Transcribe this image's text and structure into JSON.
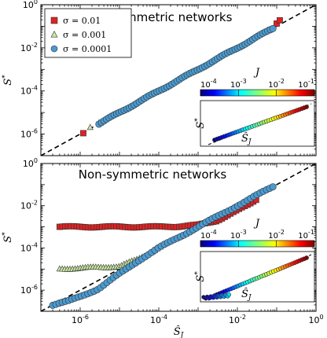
{
  "chart_data": [
    {
      "type": "scatter",
      "title": "Symmetric networks",
      "xscale": "log",
      "yscale": "log",
      "xlim": [
        1e-07,
        1
      ],
      "ylim": [
        1e-07,
        1
      ],
      "xlabel": "",
      "ylabel": "S*",
      "ytick_labels": [
        "10^{-6}",
        "10^{-4}",
        "10^{-2}",
        "10^{0}"
      ],
      "xtick_labels": [],
      "reference_line": "y = x (dashed)",
      "legend": {
        "placement": "top-left",
        "entries": [
          {
            "label": "σ = 0.01",
            "marker": "square",
            "color": "#dd2222"
          },
          {
            "label": "σ = 0.001",
            "marker": "triangle",
            "color": "#c8e6a0"
          },
          {
            "label": "σ = 0.0001",
            "marker": "circle",
            "color": "#4a9ad0"
          }
        ]
      },
      "series": [
        {
          "name": "σ = 0.01",
          "x": [
            1.2e-06,
            0.1,
            0.12
          ],
          "y": [
            1.1e-06,
            0.13,
            0.18
          ]
        },
        {
          "name": "σ = 0.001",
          "x": [
            1.8e-06,
            3e-06,
            0.06
          ],
          "y": [
            2e-06,
            3.3e-06,
            0.07
          ]
        },
        {
          "name": "σ = 0.0001",
          "x": [
            3e-06,
            6e-06,
            1e-05,
            2e-05,
            4e-05,
            8e-05,
            0.00015,
            0.0003,
            0.0006,
            0.001,
            0.002,
            0.004,
            0.008,
            0.015,
            0.03,
            0.05,
            0.08
          ],
          "y": [
            3e-06,
            6e-06,
            1e-05,
            2e-05,
            4e-05,
            8e-05,
            0.00015,
            0.0003,
            0.0006,
            0.001,
            0.002,
            0.004,
            0.008,
            0.015,
            0.03,
            0.05,
            0.08
          ]
        }
      ],
      "inset": {
        "placement": "bottom-right",
        "xlabel": "Ŝ_J",
        "ylabel": "S*",
        "colorbar": {
          "label": "J",
          "scale": "log",
          "range": [
            0.0001,
            0.1
          ],
          "tick_labels": [
            "10^{-4}",
            "10^{-3}",
            "10^{-2}",
            "10^{-1}"
          ],
          "colormap": "jet"
        }
      }
    },
    {
      "type": "scatter",
      "title": "Non-symmetric networks",
      "xscale": "log",
      "yscale": "log",
      "xlim": [
        1e-07,
        1
      ],
      "ylim": [
        1e-07,
        1
      ],
      "xlabel": "Ŝ_J",
      "ylabel": "S*",
      "ytick_labels": [
        "10^{-6}",
        "10^{-4}",
        "10^{-2}",
        "10^{0}"
      ],
      "xtick_labels": [
        "10^{-6}",
        "10^{-4}",
        "10^{-2}",
        "10^{0}"
      ],
      "reference_line": "y = x (dashed)",
      "series": [
        {
          "name": "σ = 0.01",
          "x": [
            3e-07,
            1e-06,
            3e-06,
            1e-05,
            3e-05,
            0.0001,
            0.0003,
            0.001,
            0.003,
            0.01,
            0.02,
            0.03
          ],
          "y": [
            0.001,
            0.001,
            0.001,
            0.001,
            0.001,
            0.001,
            0.00105,
            0.0012,
            0.002,
            0.006,
            0.012,
            0.02
          ]
        },
        {
          "name": "σ = 0.001",
          "x": [
            3e-07,
            1e-06,
            3e-06,
            1e-05,
            3e-05,
            0.0001,
            0.0003,
            0.001,
            0.003,
            0.01
          ],
          "y": [
            1e-05,
            1.1e-05,
            1.2e-05,
            1.3e-05,
            3e-05,
            0.0001,
            0.0003,
            0.001,
            0.003,
            0.01
          ]
        },
        {
          "name": "σ = 0.0001",
          "x": [
            2e-07,
            5e-07,
            1e-06,
            3e-06,
            1e-05,
            3e-05,
            0.0001,
            0.0003,
            0.001,
            0.003,
            0.01,
            0.03,
            0.05,
            0.08
          ],
          "y": [
            2e-07,
            3e-07,
            5e-07,
            1.2e-06,
            6e-06,
            2.5e-05,
            0.0001,
            0.0003,
            0.001,
            0.003,
            0.01,
            0.03,
            0.05,
            0.08
          ]
        }
      ],
      "inset": {
        "placement": "bottom-right",
        "xlabel": "Ŝ_J",
        "ylabel": "S*",
        "colorbar": {
          "label": "J",
          "scale": "log",
          "range": [
            0.0001,
            0.1
          ],
          "tick_labels": [
            "10^{-4}",
            "10^{-3}",
            "10^{-2}",
            "10^{-1}"
          ],
          "colormap": "jet"
        }
      }
    }
  ],
  "colors": {
    "s001": "#dd2222",
    "s0001": "#c8e6a0",
    "s00001": "#4a9ad0",
    "edge": "#333333"
  }
}
